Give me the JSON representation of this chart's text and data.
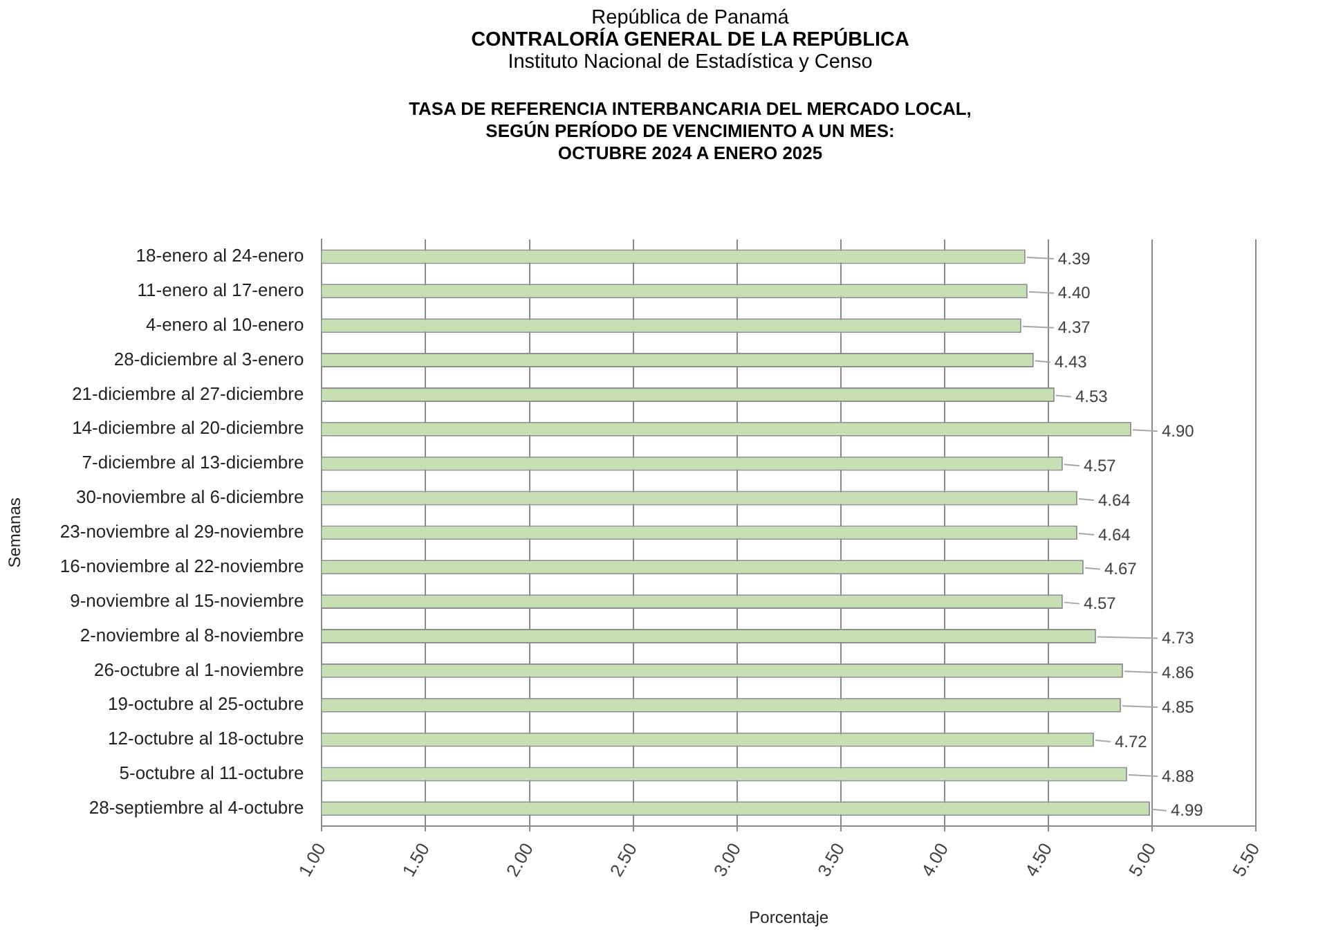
{
  "chart_data": {
    "type": "bar",
    "orientation": "horizontal",
    "annotations": [
      "República de Panamá",
      "CONTRALORÍA GENERAL DE LA REPÚBLICA",
      "Instituto Nacional de Estadística y Censo"
    ],
    "title": "TASA DE REFERENCIA INTERBANCARIA DEL MERCADO LOCAL,\nSEGÚN PERÍODO DE VENCIMIENTO A UN MES:\nOCTUBRE 2024 A ENERO 2025",
    "xlabel": "Porcentaje",
    "ylabel": "Semanas",
    "categories": [
      "18-enero al 24-enero",
      "11-enero al 17-enero",
      "4-enero al 10-enero",
      "28-diciembre al 3-enero",
      "21-diciembre al 27-diciembre",
      "14-diciembre al 20-diciembre",
      "7-diciembre al 13-diciembre",
      "30-noviembre al 6-diciembre",
      "23-noviembre al 29-noviembre",
      "16-noviembre al 22-noviembre",
      "9-noviembre al 15-noviembre",
      "2-noviembre al 8-noviembre",
      "26-octubre al 1-noviembre",
      "19-octubre al 25-octubre",
      "12-octubre al 18-octubre",
      "5-octubre al 11-octubre",
      "28-septiembre al 4-octubre"
    ],
    "values": [
      4.39,
      4.4,
      4.37,
      4.43,
      4.53,
      4.9,
      4.57,
      4.64,
      4.64,
      4.67,
      4.57,
      4.73,
      4.86,
      4.85,
      4.72,
      4.88,
      4.99
    ],
    "value_labels": [
      "4.39",
      "4.40",
      "4.37",
      "4.43",
      "4.53",
      "4.90",
      "4.57",
      "4.64",
      "4.64",
      "4.67",
      "4.57",
      "4.73",
      "4.86",
      "4.85",
      "4.72",
      "4.88",
      "4.99"
    ],
    "color": "#c6e0b4",
    "xlim": [
      1,
      5.5
    ],
    "xticks": [
      {
        "value": 1,
        "label": "1.00"
      },
      {
        "value": 1.5,
        "label": "1.50"
      },
      {
        "value": 2,
        "label": "2.00"
      },
      {
        "value": 2.5,
        "label": "2.50"
      },
      {
        "value": 3,
        "label": "3.00"
      },
      {
        "value": 3.5,
        "label": "3.50"
      },
      {
        "value": 4,
        "label": "4.00"
      },
      {
        "value": 4.5,
        "label": "4.50"
      },
      {
        "value": 5,
        "label": "5.00"
      },
      {
        "value": 5.5,
        "label": "5.50"
      }
    ],
    "grid": "x"
  }
}
